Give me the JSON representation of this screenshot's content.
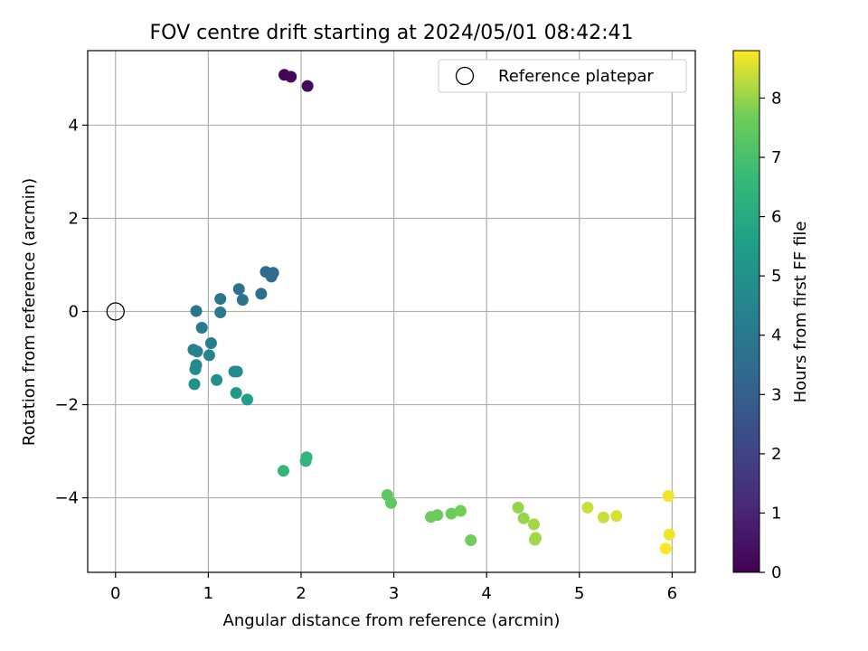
{
  "chart_data": {
    "type": "scatter",
    "title": "FOV centre drift starting at 2024/05/01 08:42:41",
    "xlabel": "Angular distance from reference (arcmin)",
    "ylabel": "Rotation from reference (arcmin)",
    "xlim": [
      -0.3,
      6.25
    ],
    "ylim": [
      -5.6,
      5.6
    ],
    "x_ticks": [
      0,
      1,
      2,
      3,
      4,
      5,
      6
    ],
    "x_tick_labels": [
      "0",
      "1",
      "2",
      "3",
      "4",
      "5",
      "6"
    ],
    "y_ticks": [
      -4,
      -2,
      0,
      2,
      4
    ],
    "y_tick_labels": [
      "−4",
      "−2",
      "0",
      "2",
      "4"
    ],
    "grid": true,
    "legend": {
      "placement": "top-right",
      "entries": [
        {
          "label": "Reference platepar",
          "marker": "open-circle",
          "color": "#000000"
        }
      ]
    },
    "reference_point": {
      "x": 0,
      "y": 0
    },
    "colorbar": {
      "label": "Hours from first FF file",
      "colormap": "viridis",
      "range": [
        0,
        8.8
      ],
      "ticks": [
        0,
        1,
        2,
        3,
        4,
        5,
        6,
        7,
        8
      ],
      "tick_labels": [
        "0",
        "1",
        "2",
        "3",
        "4",
        "5",
        "6",
        "7",
        "8"
      ]
    },
    "points": [
      {
        "x": 1.82,
        "y": 5.08,
        "hours": 0.1
      },
      {
        "x": 1.89,
        "y": 5.04,
        "hours": 0.2
      },
      {
        "x": 2.07,
        "y": 4.84,
        "hours": 0.3
      },
      {
        "x": 1.62,
        "y": 0.85,
        "hours": 3.4
      },
      {
        "x": 1.7,
        "y": 0.83,
        "hours": 3.5
      },
      {
        "x": 1.68,
        "y": 0.75,
        "hours": 3.5
      },
      {
        "x": 1.33,
        "y": 0.48,
        "hours": 3.6
      },
      {
        "x": 1.57,
        "y": 0.38,
        "hours": 3.7
      },
      {
        "x": 1.13,
        "y": 0.27,
        "hours": 3.8
      },
      {
        "x": 1.37,
        "y": 0.25,
        "hours": 3.8
      },
      {
        "x": 0.87,
        "y": 0.01,
        "hours": 3.9
      },
      {
        "x": 1.13,
        "y": -0.02,
        "hours": 4.0
      },
      {
        "x": 0.93,
        "y": -0.35,
        "hours": 4.1
      },
      {
        "x": 1.03,
        "y": -0.68,
        "hours": 4.2
      },
      {
        "x": 0.84,
        "y": -0.82,
        "hours": 4.3
      },
      {
        "x": 0.88,
        "y": -0.86,
        "hours": 4.4
      },
      {
        "x": 1.01,
        "y": -0.94,
        "hours": 4.5
      },
      {
        "x": 0.87,
        "y": -1.15,
        "hours": 4.6
      },
      {
        "x": 0.86,
        "y": -1.24,
        "hours": 4.7
      },
      {
        "x": 1.28,
        "y": -1.29,
        "hours": 4.8
      },
      {
        "x": 1.31,
        "y": -1.29,
        "hours": 4.8
      },
      {
        "x": 1.09,
        "y": -1.47,
        "hours": 4.9
      },
      {
        "x": 0.85,
        "y": -1.56,
        "hours": 5.0
      },
      {
        "x": 1.3,
        "y": -1.75,
        "hours": 5.3
      },
      {
        "x": 1.42,
        "y": -1.89,
        "hours": 5.5
      },
      {
        "x": 1.81,
        "y": -3.42,
        "hours": 6.5
      },
      {
        "x": 2.06,
        "y": -3.13,
        "hours": 6.5
      },
      {
        "x": 2.05,
        "y": -3.21,
        "hours": 6.5
      },
      {
        "x": 2.93,
        "y": -3.94,
        "hours": 7.4
      },
      {
        "x": 2.97,
        "y": -4.11,
        "hours": 7.4
      },
      {
        "x": 3.4,
        "y": -4.41,
        "hours": 7.6
      },
      {
        "x": 3.47,
        "y": -4.37,
        "hours": 7.6
      },
      {
        "x": 3.62,
        "y": -4.34,
        "hours": 7.6
      },
      {
        "x": 3.72,
        "y": -4.28,
        "hours": 7.7
      },
      {
        "x": 3.83,
        "y": -4.91,
        "hours": 7.7
      },
      {
        "x": 4.34,
        "y": -4.21,
        "hours": 8.0
      },
      {
        "x": 4.4,
        "y": -4.44,
        "hours": 8.0
      },
      {
        "x": 4.51,
        "y": -4.57,
        "hours": 8.1
      },
      {
        "x": 4.53,
        "y": -4.86,
        "hours": 8.1
      },
      {
        "x": 4.52,
        "y": -4.9,
        "hours": 8.1
      },
      {
        "x": 5.09,
        "y": -4.21,
        "hours": 8.4
      },
      {
        "x": 5.26,
        "y": -4.42,
        "hours": 8.4
      },
      {
        "x": 5.4,
        "y": -4.39,
        "hours": 8.5
      },
      {
        "x": 5.96,
        "y": -3.96,
        "hours": 8.7
      },
      {
        "x": 5.97,
        "y": -4.79,
        "hours": 8.7
      },
      {
        "x": 5.93,
        "y": -5.09,
        "hours": 8.8
      }
    ]
  }
}
